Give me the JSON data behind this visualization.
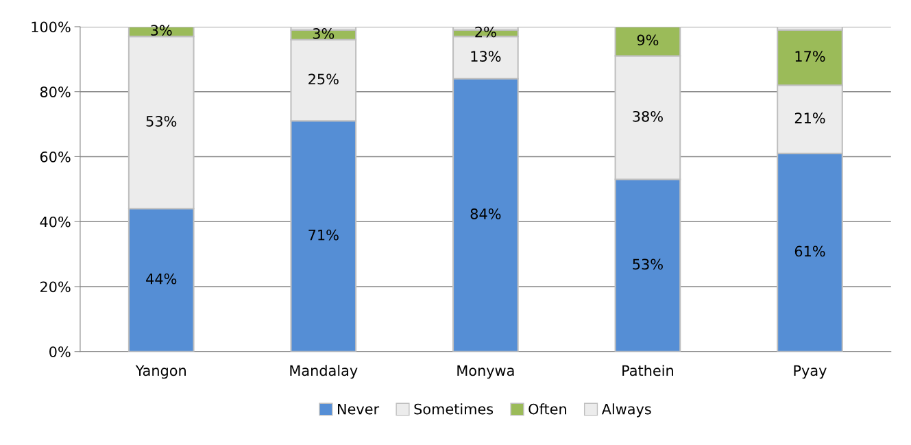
{
  "chart_data": {
    "type": "bar",
    "stacked": true,
    "categories": [
      "Yangon",
      "Mandalay",
      "Monywa",
      "Pathein",
      "Pyay"
    ],
    "series": [
      {
        "name": "Never",
        "color": "#558ed5",
        "values": [
          44,
          71,
          84,
          53,
          61
        ],
        "value_labels": [
          "44%",
          "71%",
          "84%",
          "53%",
          "61%"
        ]
      },
      {
        "name": "Sometimes",
        "color": "#ececec",
        "values": [
          53,
          25,
          13,
          38,
          21
        ],
        "value_labels": [
          "53%",
          "25%",
          "13%",
          "38%",
          "21%"
        ]
      },
      {
        "name": "Often",
        "color": "#9bbb59",
        "values": [
          3,
          3,
          2,
          9,
          17
        ],
        "value_labels": [
          "3%",
          "3%",
          "2%",
          "9%",
          "17%"
        ]
      },
      {
        "name": "Always",
        "color": "#ececec",
        "values": [
          0,
          1,
          1,
          0,
          1
        ],
        "value_labels": [
          null,
          null,
          null,
          null,
          null
        ]
      }
    ],
    "ylim": [
      0,
      100
    ],
    "yticks": [
      {
        "value": 0,
        "label": "0%"
      },
      {
        "value": 20,
        "label": "20%"
      },
      {
        "value": 40,
        "label": "40%"
      },
      {
        "value": 60,
        "label": "60%"
      },
      {
        "value": 80,
        "label": "80%"
      },
      {
        "value": 100,
        "label": "100%"
      }
    ],
    "grid": "y",
    "legend": "bottom"
  }
}
